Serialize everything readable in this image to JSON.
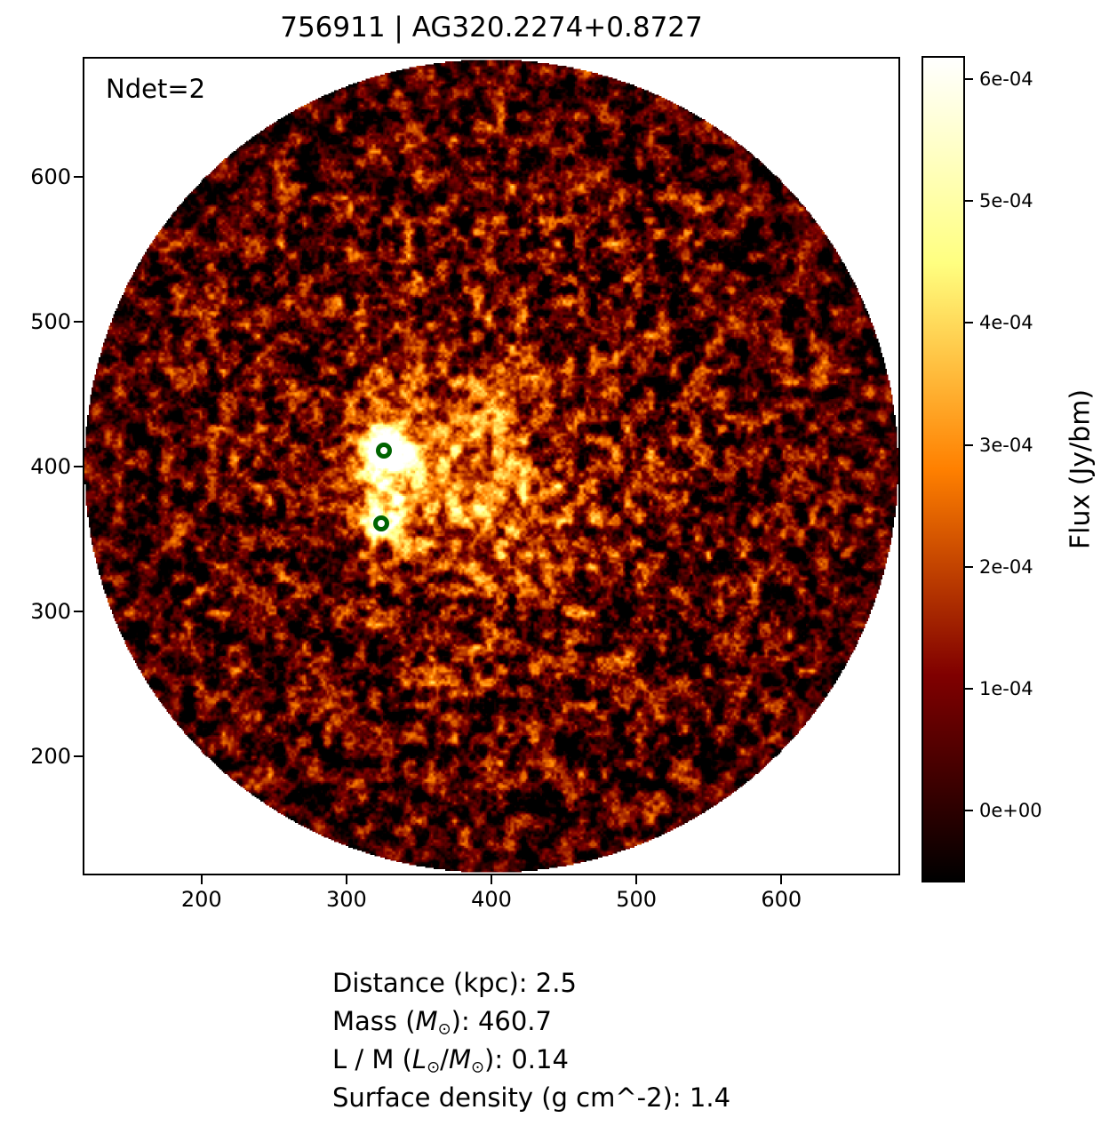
{
  "chart_data": {
    "type": "heatmap",
    "title": "756911 | AG320.2274+0.8727",
    "annotation": "Ndet=2",
    "colormap": "afmhot",
    "x_ticks": [
      200,
      300,
      400,
      500,
      600
    ],
    "y_ticks": [
      200,
      300,
      400,
      500,
      600
    ],
    "x_range": [
      118,
      682
    ],
    "y_range": [
      118,
      683
    ],
    "grid": false,
    "field_of_view": {
      "shape": "circle",
      "center_x": 400,
      "center_y": 400.5,
      "radius": 282,
      "outside_color": "#ffffff"
    },
    "detections": [
      {
        "x": 326,
        "y": 411
      },
      {
        "x": 324,
        "y": 361
      }
    ],
    "detection_marker_color": "#006400",
    "bright_regions": [
      {
        "x": 326,
        "y": 411,
        "sigma": 8,
        "amp": 1.0
      },
      {
        "x": 330,
        "y": 404,
        "sigma": 20,
        "amp": 0.45
      },
      {
        "x": 324,
        "y": 361,
        "sigma": 9,
        "amp": 0.5
      },
      {
        "x": 327,
        "y": 366,
        "sigma": 16,
        "amp": 0.22
      },
      {
        "x": 385,
        "y": 385,
        "sigma": 45,
        "amp": 0.2
      },
      {
        "x": 430,
        "y": 380,
        "sigma": 55,
        "amp": 0.1
      },
      {
        "x": 360,
        "y": 430,
        "sigma": 60,
        "amp": 0.12
      }
    ],
    "colorbar": {
      "label": "Flux (Jy/bm)",
      "tick_labels": [
        "6e-04",
        "5e-04",
        "4e-04",
        "3e-04",
        "2e-04",
        "1e-04",
        "0e+00"
      ],
      "tick_values": [
        0.0006,
        0.0005,
        0.0004,
        0.0003,
        0.0002,
        0.0001,
        0.0
      ],
      "vmin": -5.9e-05,
      "vmax": 0.000619
    }
  },
  "footer": {
    "lines": [
      {
        "parts": [
          {
            "t": "Distance (kpc): 2.5"
          }
        ]
      },
      {
        "parts": [
          {
            "t": "Mass ("
          },
          {
            "t": "M",
            "s": "it"
          },
          {
            "t": "⊙",
            "s": "sub"
          },
          {
            "t": "): 460.7"
          }
        ]
      },
      {
        "parts": [
          {
            "t": "L / M ("
          },
          {
            "t": "L",
            "s": "it"
          },
          {
            "t": "⊙",
            "s": "sub"
          },
          {
            "t": "/"
          },
          {
            "t": "M",
            "s": "it"
          },
          {
            "t": "⊙",
            "s": "sub"
          },
          {
            "t": "): 0.14"
          }
        ]
      },
      {
        "parts": [
          {
            "t": "Surface density (g cm^-2): 1.4"
          }
        ]
      }
    ]
  }
}
